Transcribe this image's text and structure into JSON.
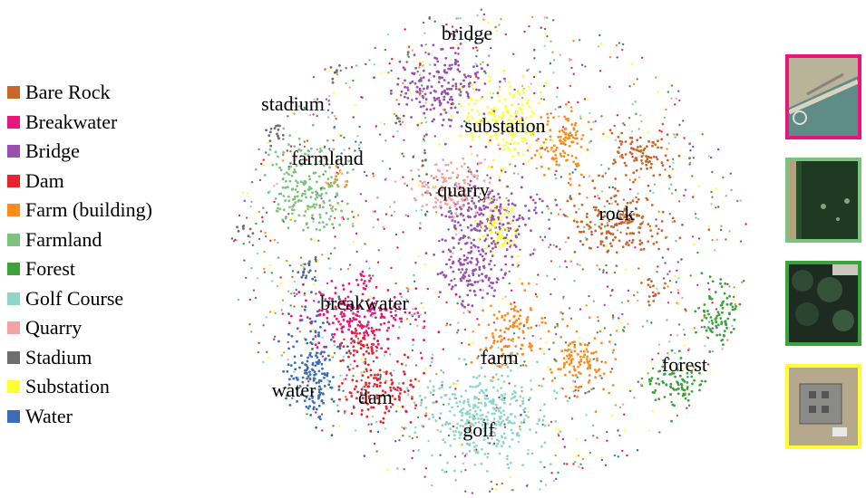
{
  "chart_data": {
    "type": "scatter",
    "title": "",
    "xlabel": "",
    "ylabel": "",
    "legend_placement": "left",
    "grid": false,
    "series": [
      {
        "name": "Bare Rock",
        "color": "#c8672a"
      },
      {
        "name": "Breakwater",
        "color": "#e8157a"
      },
      {
        "name": "Bridge",
        "color": "#9b4fb0"
      },
      {
        "name": "Dam",
        "color": "#e8232c"
      },
      {
        "name": "Farm (building)",
        "color": "#ff8c1a"
      },
      {
        "name": "Farmland",
        "color": "#7bc47f"
      },
      {
        "name": "Forest",
        "color": "#3aa33a"
      },
      {
        "name": "Golf Course",
        "color": "#8fd6c8"
      },
      {
        "name": "Quarry",
        "color": "#f4a3a3"
      },
      {
        "name": "Stadium",
        "color": "#6e6e6e"
      },
      {
        "name": "Substation",
        "color": "#ffff33"
      },
      {
        "name": "Water",
        "color": "#3a6db5"
      }
    ],
    "cluster_labels": [
      {
        "text": "bridge"
      },
      {
        "text": "stadium"
      },
      {
        "text": "substation"
      },
      {
        "text": "farmland"
      },
      {
        "text": "quarry"
      },
      {
        "text": "rock"
      },
      {
        "text": "breakwater"
      },
      {
        "text": "farm"
      },
      {
        "text": "forest"
      },
      {
        "text": "water"
      },
      {
        "text": "dam"
      },
      {
        "text": "golf"
      }
    ]
  },
  "thumbnails": [
    {
      "name": "breakwater-thumbnail",
      "border_color": "#e8157a"
    },
    {
      "name": "farmland-thumbnail",
      "border_color": "#7bc47f"
    },
    {
      "name": "forest-thumbnail",
      "border_color": "#3aa33a"
    },
    {
      "name": "substation-thumbnail",
      "border_color": "#ffff33"
    }
  ]
}
